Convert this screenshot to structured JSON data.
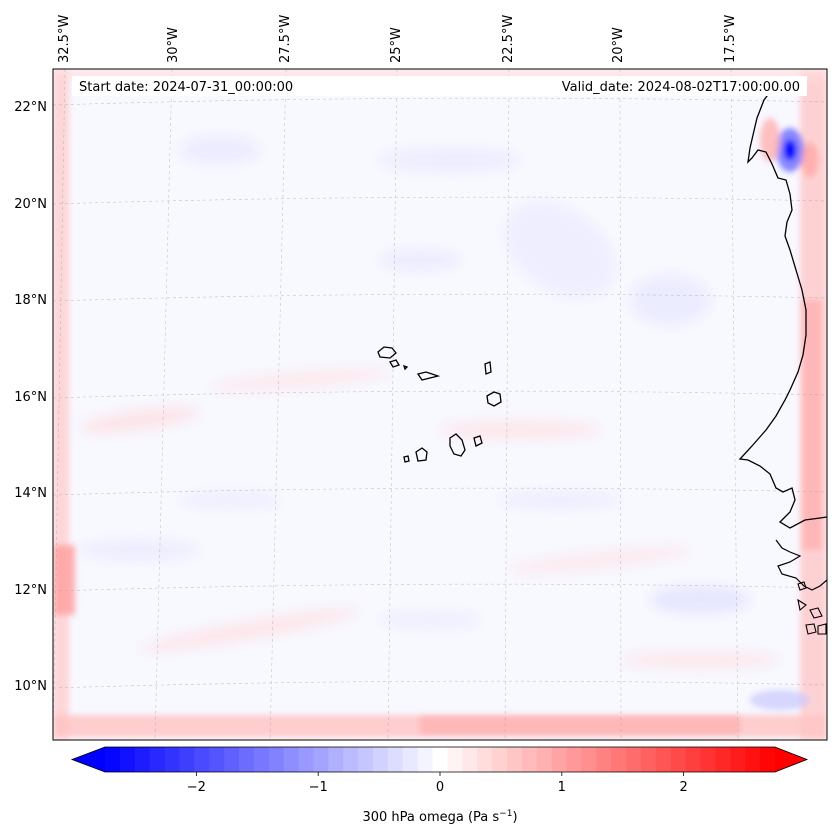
{
  "map": {
    "start_date": "Start date: 2024-07-31_00:00:00",
    "valid_date": "Valid_date: 2024-08-02T17:00:00.00",
    "lon_labels": [
      "32.5°W",
      "30°W",
      "27.5°W",
      "25°W",
      "22.5°W",
      "20°W",
      "17.5°W"
    ],
    "lat_labels": [
      "22°N",
      "20°N",
      "18°N",
      "16°N",
      "14°N",
      "12°N",
      "10°N"
    ],
    "islands": [
      "Santo Antão",
      "São Vicente",
      "São Nicolau",
      "Sal",
      "Boa Vista",
      "Maio",
      "Santiago",
      "Fogo",
      "Brava"
    ]
  },
  "colorbar": {
    "label": "300 hPa omega (Pa s",
    "label_sup": "−1",
    "label_close": ")",
    "ticks": [
      "−2",
      "−1",
      "0",
      "1",
      "2"
    ],
    "tick_values": [
      -2,
      -1,
      0,
      1,
      2
    ],
    "vmin": -2.75,
    "vmax": 2.75,
    "levels": 45,
    "cmap": "bwr",
    "low_color": "#0000ff",
    "mid_color": "#ffffff",
    "high_color": "#ff0000"
  }
}
